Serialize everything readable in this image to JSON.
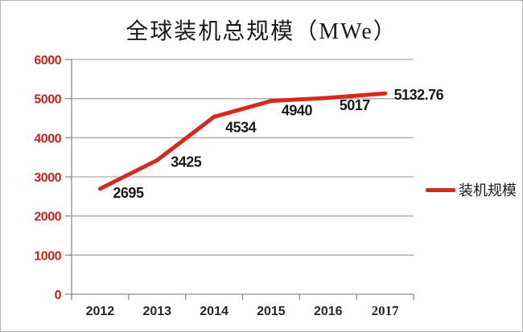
{
  "chart_data": {
    "type": "line",
    "title": "全球装机总规模（MWe）",
    "categories": [
      "2012",
      "2013",
      "2014",
      "2015",
      "2016",
      "2017"
    ],
    "series": [
      {
        "name": "装机规模",
        "values": [
          2695,
          3425,
          4534,
          4940,
          5017,
          5132.76
        ],
        "data_labels": [
          "2695",
          "3425",
          "4534",
          "4940",
          "5017",
          "5132.76"
        ]
      }
    ],
    "xlabel": "",
    "ylabel": "",
    "ylim": [
      0,
      6000
    ],
    "y_ticks": [
      0,
      1000,
      2000,
      3000,
      4000,
      5000,
      6000
    ],
    "grid": "horizontal",
    "legend_position": "right",
    "colors": {
      "line": "#d7281d",
      "y_tick_label": "#c0261c",
      "gridline": "#a9a9a9",
      "axis": "#8c8c8c",
      "data_label": "#1a1a1a",
      "x_tick_label": "#262626"
    }
  }
}
